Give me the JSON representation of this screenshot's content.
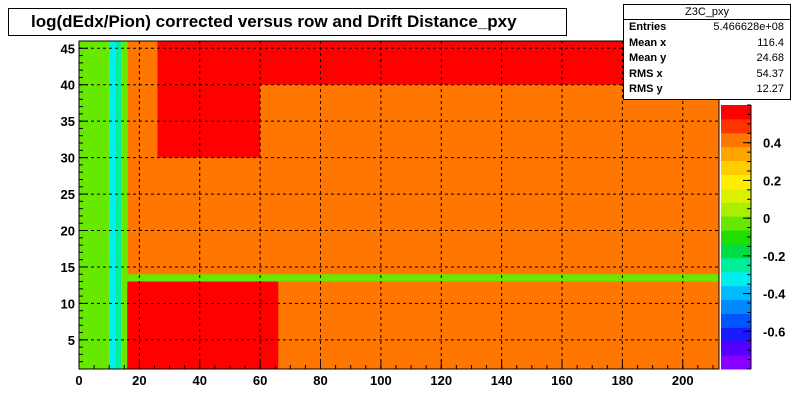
{
  "chart_data": {
    "type": "heatmap",
    "title": "log(dEdx/Pion) corrected versus row and Drift Distance_pxy",
    "xlabel": "",
    "ylabel": "",
    "xlim": [
      0,
      212
    ],
    "ylim": [
      1,
      46
    ],
    "x_ticks": [
      "0",
      "20",
      "40",
      "60",
      "80",
      "100",
      "120",
      "140",
      "160",
      "180",
      "200"
    ],
    "y_ticks": [
      "5",
      "10",
      "15",
      "20",
      "25",
      "30",
      "35",
      "40",
      "45"
    ],
    "zlim": [
      -0.8,
      0.6
    ],
    "z_ticks": [
      "-0.6",
      "-0.4",
      "-0.2",
      "0",
      "0.2",
      "0.4"
    ],
    "grid": true,
    "palette": [
      "#8800ff",
      "#5500ff",
      "#1a1aff",
      "#0055ff",
      "#0088ff",
      "#00bbff",
      "#00eeee",
      "#00ee99",
      "#00dd44",
      "#22dd00",
      "#66e800",
      "#aaee00",
      "#ddf000",
      "#ffee00",
      "#ffcc00",
      "#ffa500",
      "#ff7700",
      "#ff3300",
      "#ff0000"
    ],
    "regions": [
      {
        "x": [
          0,
          10
        ],
        "y": [
          1,
          46
        ],
        "z": 0.0
      },
      {
        "x": [
          10,
          12
        ],
        "y": [
          1,
          46
        ],
        "z": -0.35
      },
      {
        "x": [
          12,
          14
        ],
        "y": [
          1,
          46
        ],
        "z": -0.25
      },
      {
        "x": [
          14,
          16
        ],
        "y": [
          1,
          46
        ],
        "z": -0.05
      },
      {
        "x": [
          16,
          212
        ],
        "y": [
          1,
          46
        ],
        "z": 0.45
      },
      {
        "x": [
          26,
          212
        ],
        "y": [
          40,
          46
        ],
        "z": 0.55
      },
      {
        "x": [
          26,
          60
        ],
        "y": [
          30,
          40
        ],
        "z": 0.55
      },
      {
        "x": [
          16,
          212
        ],
        "y": [
          13,
          14
        ],
        "z": -0.05
      },
      {
        "x": [
          16,
          66
        ],
        "y": [
          1,
          13
        ],
        "z": 0.57
      },
      {
        "x": [
          16,
          36
        ],
        "y": [
          1,
          12
        ],
        "z": 0.6
      }
    ]
  },
  "stats": {
    "name": "Z3C_pxy",
    "rows": [
      {
        "label": "Entries",
        "value": "5.466628e+08"
      },
      {
        "label": "Mean x",
        "value": "116.4"
      },
      {
        "label": "Mean y",
        "value": "24.68"
      },
      {
        "label": "RMS x",
        "value": "54.37"
      },
      {
        "label": "RMS y",
        "value": "12.27"
      }
    ]
  }
}
